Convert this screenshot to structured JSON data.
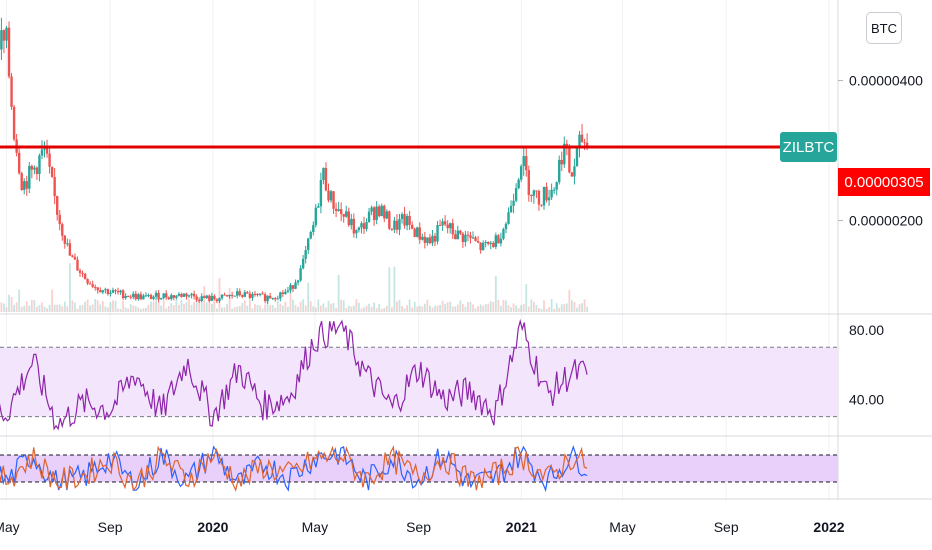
{
  "currency": "BTC",
  "symbol": "ZILBTC",
  "colors": {
    "up": "#26a69a",
    "down": "#ef5350",
    "hline": "#e00000",
    "rsi": "#8e24aa",
    "rsi_band": "#f3e5fc",
    "stoch_band": "#e8d0fb",
    "stoch_k": "#2962ff",
    "stoch_d": "#e0632b",
    "grid": "#d6d8de",
    "tag_bg": "#26a69a",
    "price_tag_bg": "#ff0000"
  },
  "chart_data": [
    {
      "type": "candlestick",
      "panel": "price",
      "symbol": "ZILBTC",
      "y_ticks": [
        "0.00000400",
        "0.00000200"
      ],
      "ylim": [
        6.8e-07,
        5.15e-06
      ],
      "horizontal_line": 3.05e-06,
      "current_price_label": "0.00000305",
      "x": [
        "2019-04-01",
        "2019-04-15",
        "2019-05-01",
        "2019-05-10",
        "2019-05-20",
        "2019-06-01",
        "2019-06-15",
        "2019-07-01",
        "2019-07-15",
        "2019-08-01",
        "2019-08-15",
        "2019-09-01",
        "2019-09-15",
        "2019-10-01",
        "2019-10-15",
        "2019-11-01",
        "2019-11-15",
        "2019-12-01",
        "2019-12-15",
        "2020-01-01",
        "2020-01-15",
        "2020-02-01",
        "2020-02-15",
        "2020-03-01",
        "2020-03-15",
        "2020-04-01",
        "2020-04-15",
        "2020-05-01",
        "2020-05-10",
        "2020-05-20",
        "2020-06-01",
        "2020-06-10",
        "2020-06-20",
        "2020-07-01",
        "2020-07-15",
        "2020-08-01",
        "2020-08-15",
        "2020-09-01",
        "2020-09-15",
        "2020-10-01",
        "2020-10-15",
        "2020-11-01",
        "2020-11-15",
        "2020-12-01",
        "2020-12-15",
        "2021-01-01",
        "2021-01-10",
        "2021-01-20",
        "2021-02-01",
        "2021-02-10",
        "2021-02-20",
        "2021-03-01",
        "2021-03-07",
        "2021-03-15",
        "2021-03-20"
      ],
      "close": [
        4.4e-06,
        4.6e-06,
        4.5e-06,
        3.3e-06,
        2.5e-06,
        2.7e-06,
        3e-06,
        2.1e-06,
        1.5e-06,
        1.2e-06,
        1.05e-06,
        9.8e-07,
        9.5e-07,
        9.2e-07,
        9e-07,
        9.3e-07,
        9.2e-07,
        9.5e-07,
        9e-07,
        8.8e-07,
        9e-07,
        9.5e-07,
        9.2e-07,
        9e-07,
        9.3e-07,
        1e-06,
        1.3e-06,
        2e-06,
        2.7e-06,
        2.3e-06,
        2.1e-06,
        2e-06,
        1.8e-06,
        2e-06,
        2.2e-06,
        1.9e-06,
        2e-06,
        1.8e-06,
        1.7e-06,
        1.95e-06,
        1.8e-06,
        1.75e-06,
        1.6e-06,
        1.7e-06,
        2e-06,
        2.9e-06,
        2.5e-06,
        2.3e-06,
        2.4e-06,
        2.5e-06,
        3.1e-06,
        2.6e-06,
        2.9e-06,
        3.2e-06,
        3.05e-06
      ]
    },
    {
      "type": "line",
      "panel": "rsi",
      "y_ticks": [
        "80.00",
        "40.00"
      ],
      "ylim": [
        20,
        88
      ],
      "band": [
        30,
        70
      ],
      "x": [
        "2019-04-01",
        "2019-05-01",
        "2019-06-01",
        "2019-07-01",
        "2019-08-01",
        "2019-09-01",
        "2019-10-01",
        "2019-11-01",
        "2019-12-01",
        "2020-01-01",
        "2020-02-01",
        "2020-03-01",
        "2020-04-01",
        "2020-05-01",
        "2020-06-01",
        "2020-07-01",
        "2020-08-01",
        "2020-09-01",
        "2020-10-01",
        "2020-11-01",
        "2020-12-01",
        "2021-01-01",
        "2021-02-01",
        "2021-03-01",
        "2021-03-20"
      ],
      "values": [
        38,
        32,
        62,
        25,
        38,
        34,
        55,
        32,
        62,
        30,
        58,
        36,
        42,
        75,
        82,
        54,
        35,
        58,
        40,
        45,
        32,
        82,
        42,
        55,
        55
      ]
    },
    {
      "type": "line",
      "panel": "stochastic",
      "ylim": [
        0,
        100
      ],
      "band": [
        20,
        80
      ],
      "x": [
        "2019-04-01",
        "2019-05-01",
        "2019-06-01",
        "2019-07-01",
        "2019-08-01",
        "2019-09-01",
        "2019-10-01",
        "2019-11-01",
        "2019-12-01",
        "2020-01-01",
        "2020-02-01",
        "2020-03-01",
        "2020-04-01",
        "2020-05-01",
        "2020-06-01",
        "2020-07-01",
        "2020-08-01",
        "2020-09-01",
        "2020-10-01",
        "2020-11-01",
        "2020-12-01",
        "2021-01-01",
        "2021-02-01",
        "2021-03-01",
        "2021-03-20"
      ],
      "series": [
        {
          "values": [
            70,
            20,
            80,
            15,
            30,
            75,
            10,
            80,
            20,
            85,
            15,
            60,
            30,
            75,
            85,
            20,
            75,
            25,
            80,
            15,
            30,
            85,
            20,
            80,
            55
          ]
        },
        {
          "values": [
            60,
            25,
            75,
            20,
            35,
            70,
            15,
            75,
            25,
            80,
            20,
            55,
            35,
            70,
            80,
            25,
            70,
            30,
            75,
            20,
            35,
            80,
            25,
            75,
            60
          ]
        }
      ]
    }
  ],
  "x_axis_labels": [
    {
      "text": "May",
      "date": "2019-05-01",
      "bold": false
    },
    {
      "text": "Sep",
      "date": "2019-09-01",
      "bold": false
    },
    {
      "text": "2020",
      "date": "2020-01-01",
      "bold": true
    },
    {
      "text": "May",
      "date": "2020-05-01",
      "bold": false
    },
    {
      "text": "Sep",
      "date": "2020-09-01",
      "bold": false
    },
    {
      "text": "2021",
      "date": "2021-01-01",
      "bold": true
    },
    {
      "text": "May",
      "date": "2021-05-01",
      "bold": false
    },
    {
      "text": "Sep",
      "date": "2021-09-01",
      "bold": false
    },
    {
      "text": "2022",
      "date": "2022-01-01",
      "bold": true
    }
  ]
}
